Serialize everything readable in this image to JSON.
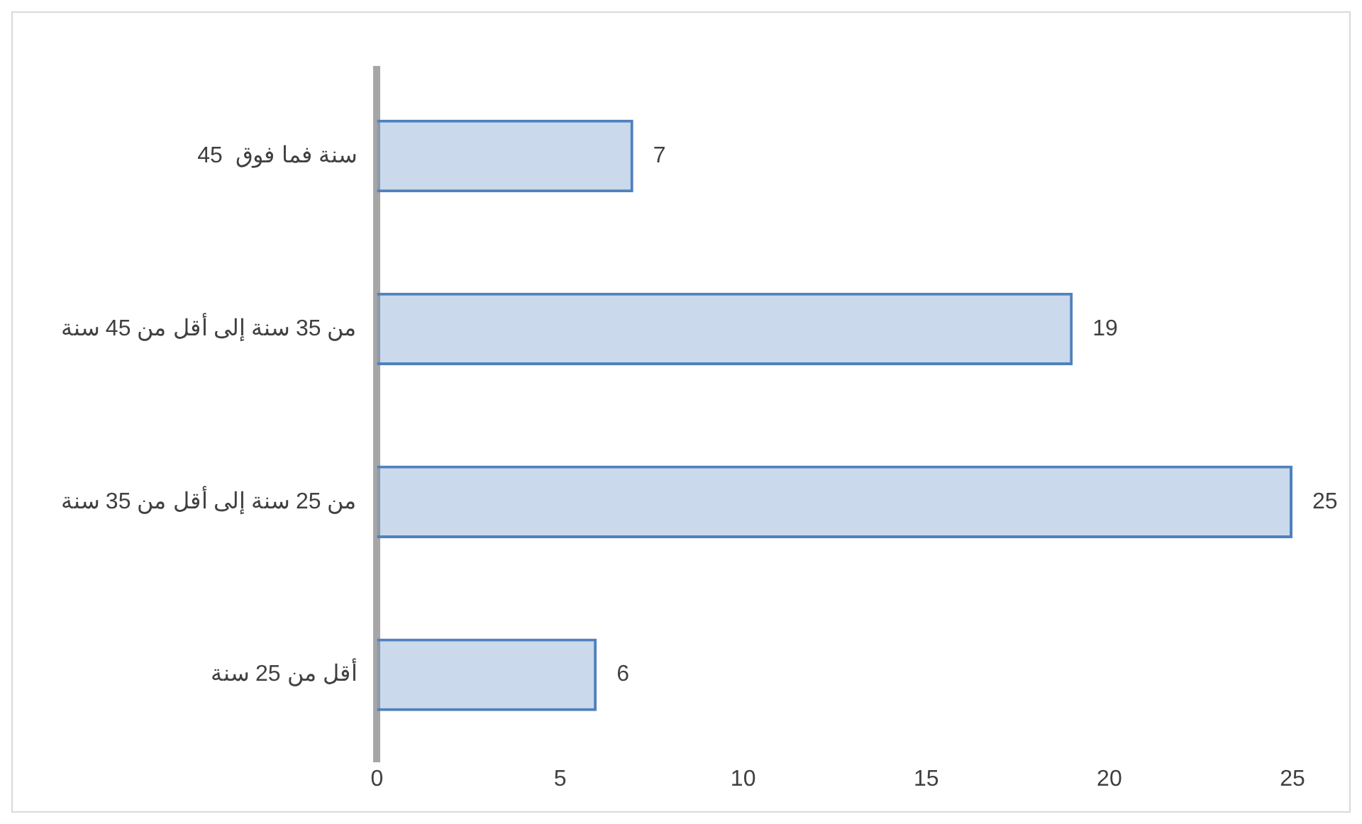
{
  "chart_data": {
    "type": "bar",
    "orientation": "horizontal",
    "categories": [
      "45  سنة فما فوق",
      "من 35 سنة إلى أقل من 45 سنة",
      "من 25 سنة إلى أقل من 35 سنة",
      "أقل من 25 سنة"
    ],
    "values": [
      7,
      19,
      25,
      6
    ],
    "color": "#4f81bd",
    "xlim": [
      0,
      25
    ],
    "xticks": [
      0,
      5,
      10,
      15,
      20,
      25
    ],
    "data_labels": true,
    "grid": false,
    "legend": false
  }
}
